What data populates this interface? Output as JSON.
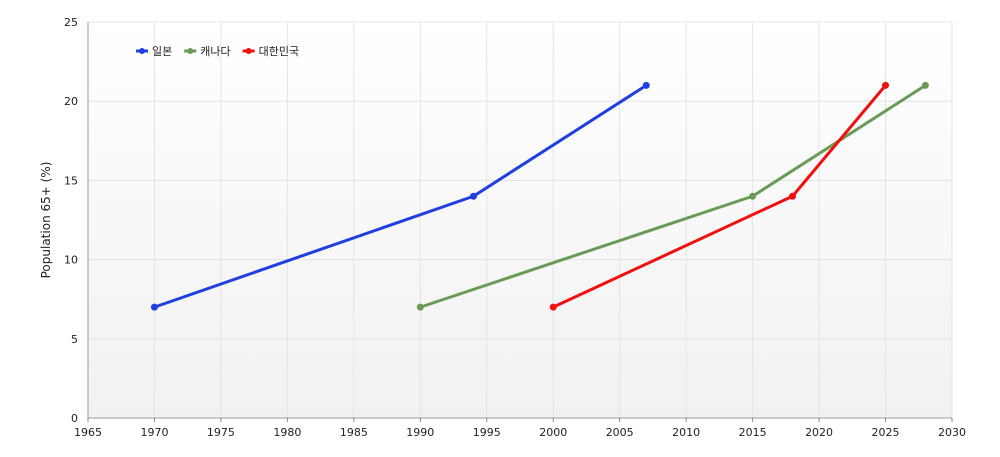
{
  "chart_data": {
    "type": "line",
    "title": "",
    "xlabel": "",
    "ylabel": "Population 65+ (%)",
    "xlim": [
      1965,
      2030
    ],
    "ylim": [
      0,
      25
    ],
    "xticks": [
      "1965",
      "1970",
      "1975",
      "1980",
      "1985",
      "1990",
      "1995",
      "2000",
      "2005",
      "2010",
      "2015",
      "2020",
      "2025",
      "2030"
    ],
    "yticks": [
      "0",
      "5",
      "10",
      "15",
      "20",
      "25"
    ],
    "grid": true,
    "legend_position": "top-left",
    "series": [
      {
        "name": "일본",
        "color": "#1f3fe0",
        "points": [
          [
            1970,
            7
          ],
          [
            1994,
            14
          ],
          [
            2007,
            21
          ]
        ]
      },
      {
        "name": "캐나다",
        "color": "#6a9a58",
        "points": [
          [
            1990,
            7
          ],
          [
            2015,
            14
          ],
          [
            2028,
            21
          ]
        ]
      },
      {
        "name": "대한민국",
        "color": "#f01010",
        "points": [
          [
            2000,
            7
          ],
          [
            2018,
            14
          ],
          [
            2025,
            21
          ]
        ]
      }
    ]
  }
}
